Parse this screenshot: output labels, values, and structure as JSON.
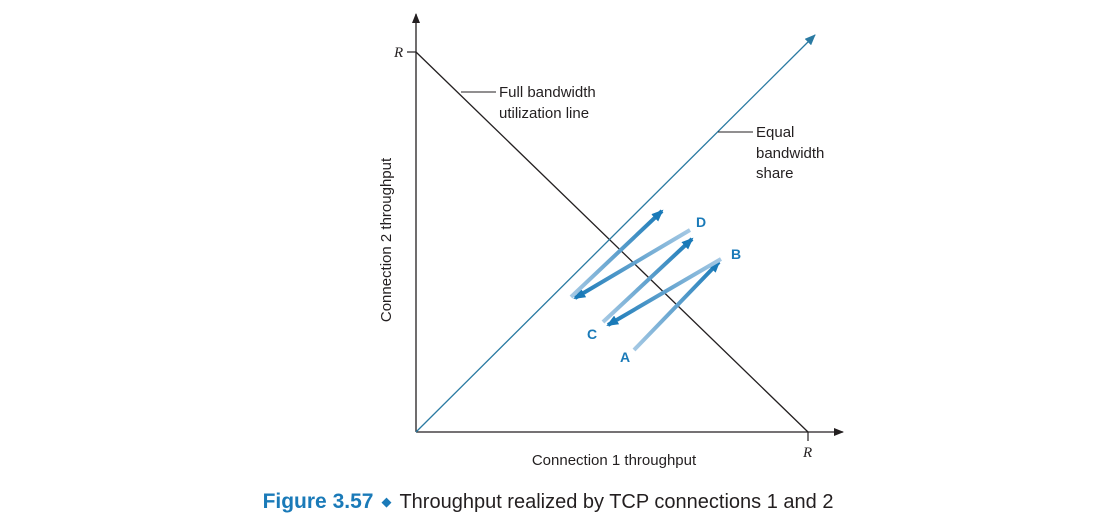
{
  "diagram": {
    "y_axis_label": "Connection 2 throughput",
    "x_axis_label": "Connection 1 throughput",
    "r_label_y": "R",
    "r_label_x": "R",
    "full_bandwidth_label": [
      "Full bandwidth",
      "utilization line"
    ],
    "equal_share_label": [
      "Equal",
      "bandwidth",
      "share"
    ],
    "points": [
      "A",
      "B",
      "C",
      "D"
    ]
  },
  "caption": {
    "figure_number": "Figure 3.57",
    "text": "Throughput realized by TCP connections 1 and 2"
  },
  "colors": {
    "axis": "#231f20",
    "equal_share_line": "#2a7aa2",
    "arrow_dark": "#1a7ab8",
    "arrow_light": "#a6c9e4",
    "caption_accent": "#1a7ab8"
  }
}
